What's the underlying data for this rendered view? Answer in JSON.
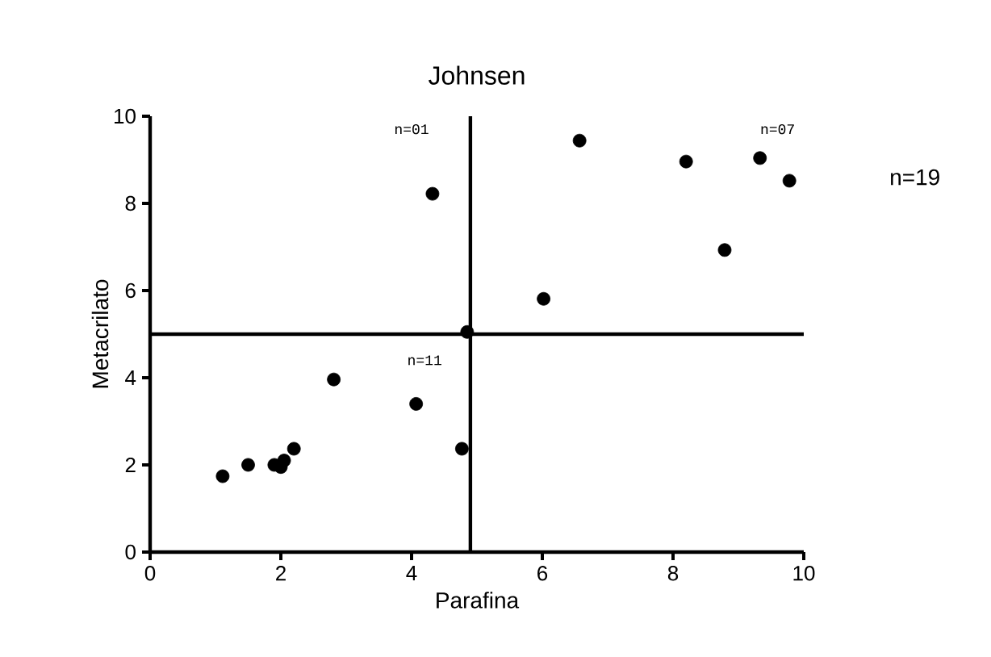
{
  "chart_data": {
    "type": "scatter",
    "title": "Johnsen",
    "xlabel": "Parafina",
    "ylabel": "Metacrilato",
    "x": [
      1.11,
      1.5,
      1.9,
      2.0,
      2.05,
      2.2,
      2.81,
      4.07,
      4.77,
      4.85,
      4.32,
      6.02,
      6.57,
      8.2,
      8.79,
      9.33,
      9.78
    ],
    "values": [
      1.74,
      2.0,
      2.0,
      1.95,
      2.1,
      2.37,
      3.96,
      3.4,
      2.37,
      5.05,
      8.22,
      5.81,
      9.44,
      8.96,
      6.93,
      9.04,
      8.52
    ],
    "color": "#000000",
    "xlim": [
      0,
      10
    ],
    "ylim": [
      0,
      10
    ],
    "xticks": [
      0,
      2,
      4,
      6,
      8,
      10
    ],
    "yticks": [
      0,
      2,
      4,
      6,
      8,
      10
    ],
    "ref_lines": [
      {
        "axis": "x",
        "value": 4.9,
        "color": "#000000"
      },
      {
        "axis": "y",
        "value": 5,
        "color": "#000000"
      }
    ],
    "annotations": [
      "n=01",
      "n=11",
      "n=07",
      "n=19"
    ]
  }
}
